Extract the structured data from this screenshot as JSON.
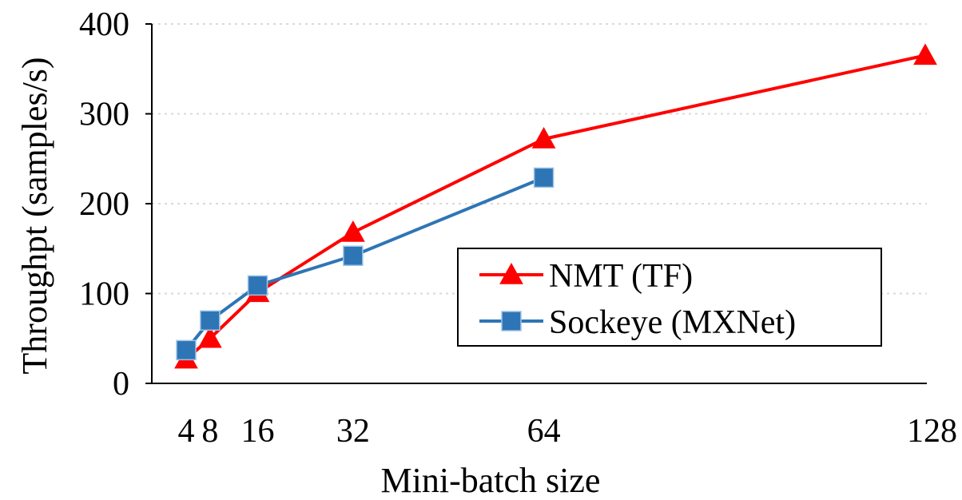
{
  "chart_data": {
    "type": "line",
    "xlabel": "Mini-batch size",
    "ylabel": "Throughpt (samples/s)",
    "xlim": [
      4,
      128
    ],
    "ylim": [
      0,
      400
    ],
    "x_ticks": [
      4,
      8,
      16,
      32,
      64,
      128
    ],
    "x_tick_labels": [
      "4",
      "8",
      "16",
      "32",
      "64",
      "128"
    ],
    "y_ticks": [
      0,
      100,
      200,
      300,
      400
    ],
    "y_tick_labels": [
      "0",
      "100",
      "200",
      "300",
      "400"
    ],
    "grid": "horizontal-dotted",
    "legend_position": "center-right",
    "series": [
      {
        "name": "NMT (TF)",
        "color": "#ff0000",
        "marker": "triangle",
        "x": [
          4,
          8,
          16,
          32,
          64,
          128
        ],
        "y": [
          27,
          50,
          101,
          168,
          272,
          365
        ]
      },
      {
        "name": "Sockeye (MXNet)",
        "color": "#2e75b6",
        "marker": "square",
        "x": [
          4,
          8,
          16,
          32,
          64
        ],
        "y": [
          37,
          70,
          109,
          142,
          229
        ]
      }
    ]
  }
}
